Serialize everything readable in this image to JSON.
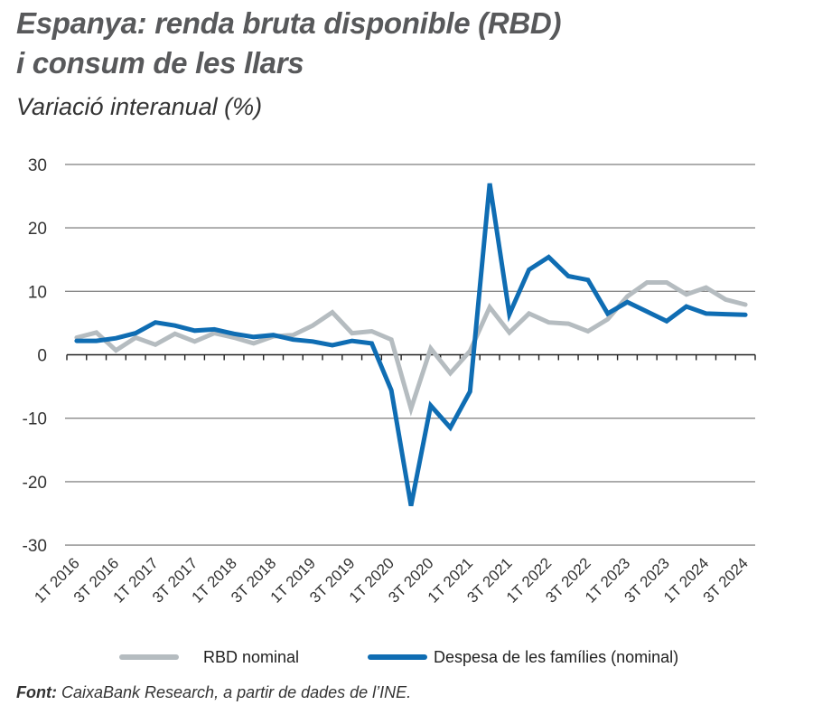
{
  "title_line1": "Espanya: renda bruta disponible (RBD)",
  "title_line2": "i consum de les llars",
  "subtitle": "Variació interanual (%)",
  "footnote_label": "Font:",
  "footnote_text": " CaixaBank Research, a partir de dades de l’INE.",
  "chart_data": {
    "type": "line",
    "title": "Espanya: renda bruta disponible (RBD) i consum de les llars",
    "subtitle": "Variació interanual (%)",
    "ylim": [
      -30,
      30
    ],
    "yticks": [
      30,
      20,
      10,
      0,
      -10,
      -20,
      -30
    ],
    "grid": true,
    "legend_position": "bottom",
    "x": [
      "1T 2016",
      "2T 2016",
      "3T 2016",
      "4T 2016",
      "1T 2017",
      "2T 2017",
      "3T 2017",
      "4T 2017",
      "1T 2018",
      "2T 2018",
      "3T 2018",
      "4T 2018",
      "1T 2019",
      "2T 2019",
      "3T 2019",
      "4T 2019",
      "1T 2020",
      "2T 2020",
      "3T 2020",
      "4T 2020",
      "1T 2021",
      "2T 2021",
      "3T 2021",
      "4T 2021",
      "1T 2022",
      "2T 2022",
      "3T 2022",
      "4T 2022",
      "1T 2023",
      "2T 2023",
      "3T 2023",
      "4T 2023",
      "1T 2024",
      "2T 2024",
      "3T 2024"
    ],
    "xtick_labels": [
      "1T 2016",
      "3T 2016",
      "1T 2017",
      "3T 2017",
      "1T 2018",
      "3T 2018",
      "1T 2019",
      "3T 2019",
      "1T 2020",
      "3T 2020",
      "1T 2021",
      "3T 2021",
      "1T 2022",
      "3T 2022",
      "1T 2023",
      "3T 2023",
      "1T 2024",
      "3T 2024"
    ],
    "series": [
      {
        "name": "RBD nominal",
        "color": "#b5bcc0",
        "values": [
          2.7,
          3.5,
          0.7,
          2.7,
          1.6,
          3.3,
          2.1,
          3.4,
          2.7,
          1.8,
          2.9,
          3.1,
          4.6,
          6.7,
          3.4,
          3.7,
          2.4,
          -8.5,
          1.0,
          -2.9,
          0.6,
          7.5,
          3.5,
          6.5,
          5.1,
          4.9,
          3.7,
          5.6,
          9.2,
          11.4,
          11.4,
          9.5,
          10.6,
          8.7,
          7.9
        ]
      },
      {
        "name": "Despesa de les famílies (nominal)",
        "color": "#0f6db3",
        "values": [
          2.2,
          2.2,
          2.6,
          3.4,
          5.1,
          4.6,
          3.8,
          4.0,
          3.3,
          2.8,
          3.1,
          2.4,
          2.1,
          1.5,
          2.2,
          1.8,
          -5.6,
          -23.8,
          -8.0,
          -11.5,
          -5.8,
          27.0,
          6.4,
          13.4,
          15.4,
          12.4,
          11.8,
          6.5,
          8.3,
          6.8,
          5.3,
          7.6,
          6.5,
          6.4,
          6.3
        ]
      }
    ]
  }
}
